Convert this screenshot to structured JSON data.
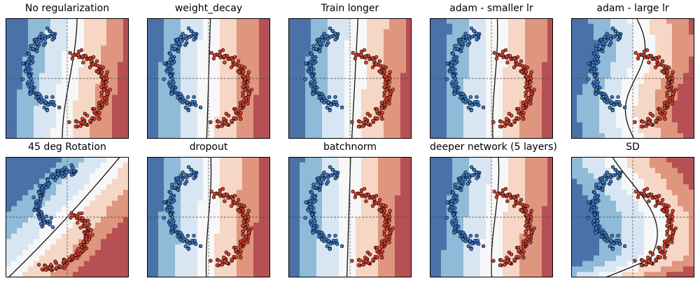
{
  "figure": {
    "colormap": "RdBu_r (blue = class 0, red = class 1)",
    "grid_lines": "dashed crosshair lines through the center of each panel",
    "axes_ticks": "none"
  },
  "chart_data": [
    {
      "type": "scatter",
      "title": "No regularization",
      "boundary": "near-vertical line at the center, bending slightly left",
      "series": [
        {
          "values": "blue upper arc"
        },
        {
          "values": "red lower arc"
        }
      ]
    },
    {
      "type": "scatter",
      "title": "weight_decay",
      "boundary": "near-vertical line through the center",
      "series": [
        {
          "values": "blue upper arc"
        },
        {
          "values": "red lower arc"
        }
      ]
    },
    {
      "type": "scatter",
      "title": "Train longer",
      "boundary": "near-vertical line slightly right of center",
      "series": [
        {
          "values": "blue upper arc"
        },
        {
          "values": "red lower arc"
        }
      ]
    },
    {
      "type": "scatter",
      "title": "adam - smaller lr",
      "boundary": "near-vertical line slightly right of center",
      "series": [
        {
          "values": "blue upper arc"
        },
        {
          "values": "red lower arc"
        }
      ]
    },
    {
      "type": "scatter",
      "title": "adam - large lr",
      "boundary": "slightly S-shaped line near the center",
      "series": [
        {
          "values": "blue upper arc"
        },
        {
          "values": "red lower arc"
        }
      ]
    },
    {
      "type": "scatter",
      "title": "45 deg Rotation",
      "boundary": "diagonal curve from lower left to upper right",
      "series": [
        {
          "values": "blue upper arc"
        },
        {
          "values": "red lower arc"
        }
      ]
    },
    {
      "type": "scatter",
      "title": "dropout",
      "boundary": "near-vertical line through the center",
      "series": [
        {
          "values": "blue upper arc"
        },
        {
          "values": "red lower arc"
        }
      ]
    },
    {
      "type": "scatter",
      "title": "batchnorm",
      "boundary": "near-vertical line slightly left of center",
      "series": [
        {
          "values": "blue upper arc"
        },
        {
          "values": "red lower arc"
        }
      ]
    },
    {
      "type": "scatter",
      "title": "deeper network (5 layers)",
      "boundary": "near-vertical line slightly right of center",
      "series": [
        {
          "values": "blue upper arc"
        },
        {
          "values": "red lower arc"
        }
      ]
    },
    {
      "type": "scatter",
      "title": "SD",
      "boundary": "S-shaped curve wrapping between the two moons",
      "series": [
        {
          "values": "blue upper arc"
        },
        {
          "values": "red lower arc"
        }
      ]
    }
  ],
  "colors": {
    "deep_blue": "#4b72a8",
    "mid_blue": "#8fbad8",
    "light_blue": "#d7e6f2",
    "white": "#f7f7f7",
    "light_red": "#f6d6c4",
    "mid_red": "#e0957e",
    "deep_red": "#b55055",
    "point_blue": "#3a78c8",
    "point_red": "#d5402e",
    "edge": "#000000"
  }
}
